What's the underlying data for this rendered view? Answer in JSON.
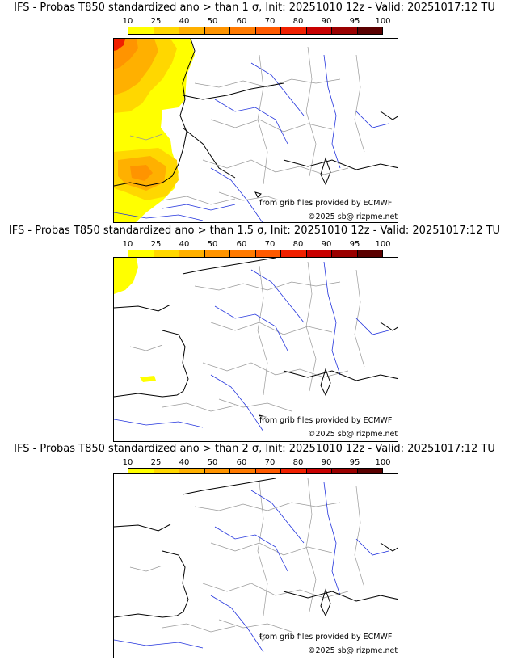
{
  "colorbar": {
    "labels": [
      "10",
      "25",
      "40",
      "50",
      "60",
      "70",
      "80",
      "90",
      "95",
      "100"
    ],
    "colors": [
      "#ffff00",
      "#ffd700",
      "#ffb000",
      "#ff9400",
      "#ff7a00",
      "#ff5a00",
      "#f02000",
      "#c80000",
      "#9a0000",
      "#5a0000"
    ]
  },
  "panels": [
    {
      "title": "IFS - Probas T850  standardized ano > than 1 σ, Init: 20251010 12z - Valid: 20251017:12 TU",
      "source_note": "from grib files provided by ECMWF",
      "copyright": "©2025 sb@irizpme.net"
    },
    {
      "title": "IFS - Probas T850  standardized ano > than 1.5 σ, Init: 20251010 12z - Valid: 20251017:12 TU",
      "source_note": "from grib files provided by ECMWF",
      "copyright": "©2025 sb@irizpme.net"
    },
    {
      "title": "IFS - Probas T850  standardized ano > than 2 σ, Init: 20251010 12z - Valid: 20251017:12 TU",
      "source_note": "from grib files provided by ECMWF",
      "copyright": "©2025 sb@irizpme.net"
    }
  ]
}
